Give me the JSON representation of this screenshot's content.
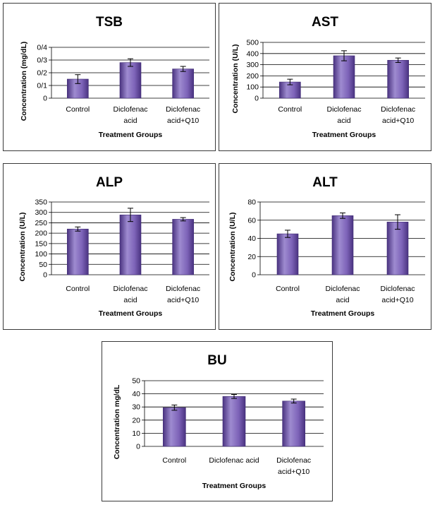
{
  "chart_data": [
    {
      "type": "bar",
      "title": "TSB",
      "xlabel": "Treatment Groups",
      "ylabel": "Concentration (mg/dL)",
      "ylim": [
        0,
        0.4
      ],
      "yticks": [
        "0",
        "0/1",
        "0/2",
        "0/3",
        "0/4"
      ],
      "categories": [
        [
          "Control"
        ],
        [
          "Diclofenac",
          "acid"
        ],
        [
          "Diclofenac",
          "acid+Q10"
        ]
      ],
      "values": [
        0.15,
        0.28,
        0.23
      ],
      "errors": [
        0.035,
        0.03,
        0.02
      ],
      "grid": true,
      "legend": false
    },
    {
      "type": "bar",
      "title": "AST",
      "xlabel": "Treatment Groups",
      "ylabel": "Concentration (U/L)",
      "ylim": [
        0,
        500
      ],
      "yticks": [
        "0",
        "100",
        "200",
        "300",
        "400",
        "500"
      ],
      "categories": [
        [
          "Control"
        ],
        [
          "Diclofenac",
          "acid"
        ],
        [
          "Diclofenac",
          "acid+Q10"
        ]
      ],
      "values": [
        145,
        380,
        340
      ],
      "errors": [
        25,
        45,
        20
      ],
      "grid": true,
      "legend": false
    },
    {
      "type": "bar",
      "title": "ALP",
      "xlabel": "Treatment Groups",
      "ylabel": "Concentration (U/L)",
      "ylim": [
        0,
        350
      ],
      "yticks": [
        "0",
        "50",
        "100",
        "150",
        "200",
        "250",
        "300",
        "350"
      ],
      "categories": [
        [
          "Control"
        ],
        [
          "Diclofenac",
          "acid"
        ],
        [
          "Diclofenac",
          "acid+Q10"
        ]
      ],
      "values": [
        220,
        288,
        267
      ],
      "errors": [
        10,
        32,
        8
      ],
      "grid": true,
      "legend": false
    },
    {
      "type": "bar",
      "title": "ALT",
      "xlabel": "Treatment Groups",
      "ylabel": "Concentration (U/L)",
      "ylim": [
        0,
        80
      ],
      "yticks": [
        "0",
        "20",
        "40",
        "60",
        "80"
      ],
      "categories": [
        [
          "Control"
        ],
        [
          "Diclofenac",
          "acid"
        ],
        [
          "Diclofenac",
          "acid+Q10"
        ]
      ],
      "values": [
        45,
        65,
        58
      ],
      "errors": [
        4,
        3,
        8
      ],
      "grid": true,
      "legend": false
    },
    {
      "type": "bar",
      "title": "BU",
      "xlabel": "Treatment Groups",
      "ylabel": "Concentration mg/dL",
      "ylim": [
        0,
        50
      ],
      "yticks": [
        "0",
        "10",
        "20",
        "30",
        "40",
        "50"
      ],
      "categories": [
        [
          "Control"
        ],
        [
          "Diclofenac acid"
        ],
        [
          "Diclofenac",
          "acid+Q10"
        ]
      ],
      "values": [
        29.5,
        38,
        34.5
      ],
      "errors": [
        2,
        1.5,
        1.5
      ],
      "grid": true,
      "legend": false
    }
  ],
  "colors": {
    "bar_top": "#9e8bd0",
    "bar_mid": "#7d63b8",
    "bar_bottom": "#4a3380",
    "bar_edge": "#3f2a75",
    "grid": "#000000",
    "border": "#3a3a3a"
  }
}
